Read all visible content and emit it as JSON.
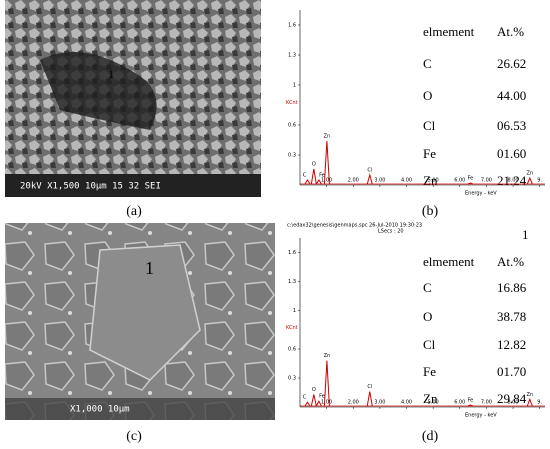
{
  "panels": [
    {
      "caption": "(a)",
      "marker": "1",
      "info": "20kV  X1,500  10μm  15 32 SEI"
    },
    {
      "caption": "(b)",
      "table": {
        "header": [
          "elmement",
          "At.%"
        ],
        "rows": [
          [
            "C",
            "26.62"
          ],
          [
            "O",
            "44.00"
          ],
          [
            "Cl",
            "06.53"
          ],
          [
            "Fe",
            "01.60"
          ],
          [
            "Zn",
            "21.24"
          ]
        ]
      }
    },
    {
      "caption": "(c)",
      "marker": "1",
      "info": "X1,000  10μm"
    },
    {
      "caption": "(d)",
      "header": [
        "c:\\edax32\\genesis\\genmaps.spc 26-Jul-2010 19:30:23",
        "LSecs : 20"
      ],
      "marker": "1",
      "table": {
        "header": [
          "elmement",
          "At.%"
        ],
        "rows": [
          [
            "C",
            "16.86"
          ],
          [
            "O",
            "38.78"
          ],
          [
            "Cl",
            "12.82"
          ],
          [
            "Fe",
            "01.70"
          ],
          [
            "Zn",
            "29.84"
          ]
        ]
      }
    }
  ],
  "chart_data": [
    {
      "type": "spectrum",
      "ylabel": "KCnt",
      "xlabel": "Energy - keV",
      "color": "#cc0000",
      "ylim": [
        0,
        1.75
      ],
      "yticks": [
        0.3,
        0.6,
        1.0,
        1.3,
        1.6
      ],
      "xlim": [
        0,
        9.2
      ],
      "xticks": [
        {
          "value": 1,
          "label": "1.00"
        },
        {
          "value": 2,
          "label": "2.00"
        },
        {
          "value": 3,
          "label": "3.00"
        },
        {
          "value": 4,
          "label": "4.00"
        },
        {
          "value": 5,
          "label": "5.00"
        },
        {
          "value": 6,
          "label": "6.00"
        },
        {
          "value": 7,
          "label": "7.00"
        },
        {
          "value": 8,
          "label": "8.00"
        },
        {
          "value": 9,
          "label": "9."
        }
      ],
      "peaks": {
        "labels": [
          "C",
          "O",
          "Fe",
          "Zn",
          "Cl",
          "Fe",
          "Zn"
        ],
        "x": [
          0.28,
          0.52,
          0.71,
          1.01,
          2.62,
          6.4,
          8.63
        ],
        "values": [
          0.05,
          0.16,
          0.05,
          0.44,
          0.1,
          0.02,
          0.07
        ]
      }
    },
    {
      "type": "spectrum",
      "ylabel": "KCnt",
      "xlabel": "Energy - keV",
      "color": "#cc0000",
      "ylim": [
        0,
        1.75
      ],
      "yticks": [
        0.3,
        0.6,
        1.0,
        1.3,
        1.6
      ],
      "xlim": [
        0,
        9.2
      ],
      "xticks": [
        {
          "value": 1,
          "label": "1.00"
        },
        {
          "value": 2,
          "label": "2.00"
        },
        {
          "value": 3,
          "label": "3.00"
        },
        {
          "value": 4,
          "label": "4.00"
        },
        {
          "value": 5,
          "label": "5.00"
        },
        {
          "value": 6,
          "label": "6.00"
        },
        {
          "value": 7,
          "label": "7.00"
        },
        {
          "value": 8,
          "label": "8.00"
        },
        {
          "value": 9,
          "label": "9."
        }
      ],
      "peaks": {
        "labels": [
          "C",
          "O",
          "Fe",
          "Zn",
          "Cl",
          "Fe",
          "Zn"
        ],
        "x": [
          0.28,
          0.52,
          0.71,
          1.01,
          2.62,
          6.4,
          8.63
        ],
        "values": [
          0.05,
          0.13,
          0.06,
          0.48,
          0.16,
          0.02,
          0.08
        ]
      }
    }
  ]
}
